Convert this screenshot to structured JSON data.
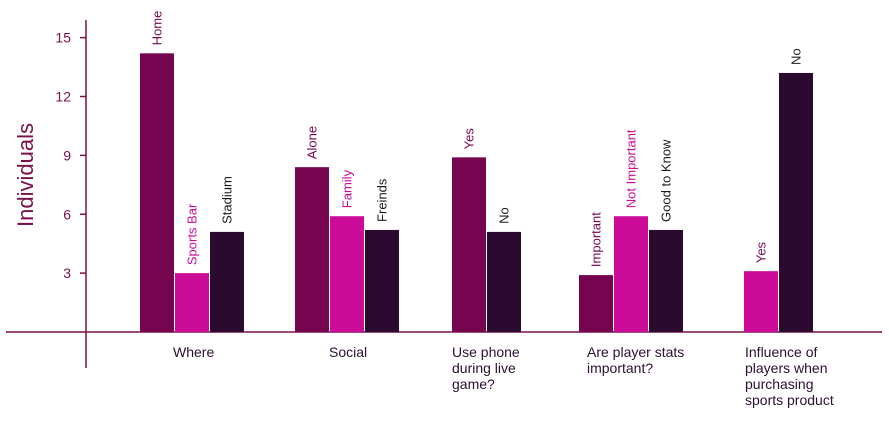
{
  "chart_data": {
    "type": "bar",
    "title": "",
    "xlabel": "",
    "ylabel": "Individuals",
    "ylim": [
      0,
      16
    ],
    "yticks": [
      3,
      6,
      9,
      12,
      15
    ],
    "grid": false,
    "groups": [
      {
        "category": [
          "Where"
        ],
        "bars": [
          {
            "label": "Home",
            "value": 14.2,
            "color": "#75054f",
            "label_color": "#75054f"
          },
          {
            "label": "Sports Bar",
            "value": 3.0,
            "color": "#cc0c99",
            "label_color": "#cc0c99"
          },
          {
            "label": "Stadium",
            "value": 5.1,
            "color": "#2b0a30",
            "label_color": "#1a1a1a"
          }
        ]
      },
      {
        "category": [
          "Social"
        ],
        "bars": [
          {
            "label": "Alone",
            "value": 8.4,
            "color": "#75054f",
            "label_color": "#75054f"
          },
          {
            "label": "Family",
            "value": 5.9,
            "color": "#cc0c99",
            "label_color": "#cc0c99"
          },
          {
            "label": "Freinds",
            "value": 5.2,
            "color": "#2b0a30",
            "label_color": "#1a1a1a"
          }
        ]
      },
      {
        "category": [
          "Use phone",
          "during live",
          "game?"
        ],
        "bars": [
          {
            "label": "Yes",
            "value": 8.9,
            "color": "#75054f",
            "label_color": "#75054f"
          },
          {
            "label": "No",
            "value": 5.1,
            "color": "#2b0a30",
            "label_color": "#1a1a1a"
          }
        ]
      },
      {
        "category": [
          "Are player stats",
          "important?"
        ],
        "bars": [
          {
            "label": "Important",
            "value": 2.9,
            "color": "#75054f",
            "label_color": "#75054f"
          },
          {
            "label": "Not Important",
            "value": 5.9,
            "color": "#cc0c99",
            "label_color": "#cc0c99"
          },
          {
            "label": "Good to Know",
            "value": 5.2,
            "color": "#2b0a30",
            "label_color": "#1a1a1a"
          }
        ]
      },
      {
        "category": [
          "Influence of",
          "players when",
          "purchasing",
          "sports product"
        ],
        "bars": [
          {
            "label": "Yes",
            "value": 3.1,
            "color": "#cc0c99",
            "label_color": "#75054f"
          },
          {
            "label": "No",
            "value": 13.2,
            "color": "#2b0a30",
            "label_color": "#1a1a1a"
          }
        ]
      }
    ]
  }
}
